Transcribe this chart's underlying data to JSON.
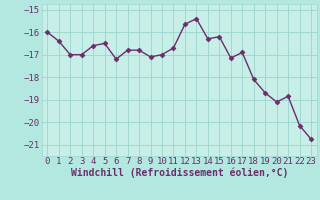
{
  "x": [
    0,
    1,
    2,
    3,
    4,
    5,
    6,
    7,
    8,
    9,
    10,
    11,
    12,
    13,
    14,
    15,
    16,
    17,
    18,
    19,
    20,
    21,
    22,
    23
  ],
  "y": [
    -16.0,
    -16.4,
    -17.0,
    -17.0,
    -16.6,
    -16.5,
    -17.2,
    -16.8,
    -16.8,
    -17.1,
    -17.0,
    -16.7,
    -15.65,
    -15.4,
    -16.3,
    -16.2,
    -17.15,
    -16.9,
    -18.1,
    -18.7,
    -19.1,
    -18.85,
    -20.15,
    -20.75
  ],
  "line_color": "#6b2d6b",
  "marker": "D",
  "marker_size": 2.5,
  "bg_color": "#b2e8e0",
  "plot_bg_color": "#c8eee8",
  "grid_color": "#a0d8d0",
  "xlabel": "Windchill (Refroidissement éolien,°C)",
  "xlabel_color": "#6b2d6b",
  "tick_color": "#6b2d6b",
  "ylim": [
    -21.5,
    -14.75
  ],
  "xlim": [
    -0.5,
    23.5
  ],
  "yticks": [
    -15,
    -16,
    -17,
    -18,
    -19,
    -20,
    -21
  ],
  "xticks": [
    0,
    1,
    2,
    3,
    4,
    5,
    6,
    7,
    8,
    9,
    10,
    11,
    12,
    13,
    14,
    15,
    16,
    17,
    18,
    19,
    20,
    21,
    22,
    23
  ],
  "font_size": 6.5,
  "xlabel_fontsize": 7.0
}
